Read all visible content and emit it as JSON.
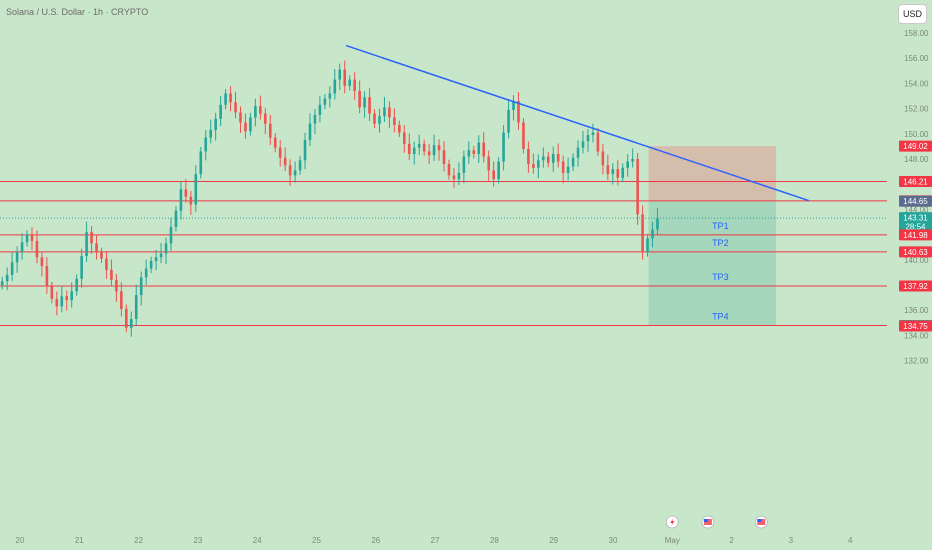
{
  "header": {
    "title": "Solana / U.S. Dollar · 1h · CRYPTO",
    "currency_button": "USD"
  },
  "colors": {
    "background": "#c8e6c9",
    "bull": "#26a69a",
    "bear": "#ef5350",
    "level_line": "#f23645",
    "trendline": "#2962ff",
    "risk_zone": "#d7b5a6",
    "reward_zone": "#9ed4b8",
    "axis_text": "#7a8a7a"
  },
  "chart_data": {
    "type": "candlestick",
    "title": "Solana / U.S. Dollar · 1h · CRYPTO",
    "xlabel": "",
    "ylabel": "",
    "ylim": [
      131.5,
      159.0
    ],
    "y_ticks": [
      "158.00",
      "156.00",
      "154.00",
      "152.00",
      "150.00",
      "148.00",
      "146.00",
      "144.00",
      "142.00",
      "140.00",
      "138.00",
      "136.00",
      "134.00",
      "132.00"
    ],
    "x_ticks": [
      "20",
      "21",
      "22",
      "23",
      "24",
      "25",
      "26",
      "27",
      "28",
      "29",
      "30",
      "May",
      "2",
      "3",
      "4"
    ],
    "x_tick_days": [
      0,
      1,
      2,
      3,
      4,
      5,
      6,
      7,
      8,
      9,
      10,
      11,
      12,
      13,
      14
    ],
    "grid": false,
    "closes": [
      138.3,
      138.8,
      139.8,
      140.6,
      141.4,
      142.0,
      141.5,
      140.2,
      139.5,
      137.9,
      136.9,
      136.3,
      137.1,
      136.8,
      137.5,
      138.5,
      140.3,
      142.2,
      141.3,
      140.6,
      140.1,
      139.2,
      138.4,
      137.5,
      136.1,
      134.6,
      135.3,
      137.2,
      138.6,
      139.3,
      139.9,
      140.2,
      140.5,
      141.3,
      142.6,
      143.9,
      145.6,
      145.0,
      144.4,
      146.8,
      148.6,
      149.7,
      150.3,
      151.2,
      152.3,
      153.2,
      152.5,
      151.7,
      150.9,
      150.2,
      151.3,
      152.2,
      151.6,
      150.8,
      149.7,
      148.9,
      148.1,
      147.5,
      146.7,
      147.1,
      147.9,
      149.5,
      150.8,
      151.5,
      152.3,
      152.8,
      153.2,
      154.3,
      155.1,
      153.8,
      154.3,
      153.4,
      152.1,
      152.9,
      151.6,
      150.8,
      151.4,
      152.1,
      151.3,
      150.7,
      150.1,
      149.2,
      148.4,
      148.9,
      149.2,
      148.6,
      148.3,
      149.1,
      148.7,
      147.6,
      146.7,
      146.4,
      146.9,
      148.2,
      148.7,
      148.4,
      149.3,
      148.2,
      147.1,
      146.4,
      147.8,
      150.1,
      151.9,
      152.6,
      150.9,
      148.8,
      147.6,
      147.3,
      147.9,
      148.2,
      147.7,
      148.4,
      147.8,
      146.9,
      147.4,
      148.1,
      148.9,
      149.4,
      149.9,
      150.1,
      148.6,
      147.5,
      146.8,
      147.2,
      146.5,
      147.3,
      147.8,
      148.0,
      143.6,
      140.6,
      141.7,
      142.4,
      143.3
    ],
    "levels": [
      {
        "price": 146.21,
        "label": "146.21"
      },
      {
        "price": 144.68,
        "label": "144.68"
      },
      {
        "price": 141.98,
        "label": "141.98"
      },
      {
        "price": 140.63,
        "label": "140.63"
      },
      {
        "price": 137.92,
        "label": "137.92"
      },
      {
        "price": 134.79,
        "label": "134.79"
      }
    ],
    "price_labels": [
      {
        "price": 149.02,
        "label": "149.02",
        "color": "#f23645"
      },
      {
        "price": 146.21,
        "label": "146.21",
        "color": "#f23645"
      },
      {
        "price": 144.68,
        "label": "144.68",
        "color": "#f23645"
      },
      {
        "price": 144.65,
        "label": "144.65",
        "color": "#5b6c8f"
      },
      {
        "price": 143.31,
        "label": "143.31",
        "sub": "28:54",
        "color": "#26a69a"
      },
      {
        "price": 141.98,
        "label": "141.98",
        "color": "#f23645"
      },
      {
        "price": 140.63,
        "label": "140.63",
        "color": "#f23645"
      },
      {
        "price": 137.92,
        "label": "137.92",
        "color": "#f23645"
      },
      {
        "price": 134.79,
        "label": "134.79",
        "color": "#26a69a"
      },
      {
        "price": 134.75,
        "label": "134.75",
        "color": "#f23645"
      }
    ],
    "trendline": {
      "from": {
        "day": 5.5,
        "price": 157.0
      },
      "to": {
        "day": 13.3,
        "price": 144.7
      }
    },
    "position": {
      "entry": 144.65,
      "stop": 149.02,
      "target": 134.79,
      "from_day": 10.6,
      "to_day": 12.75
    },
    "targets": [
      {
        "label": "TP1",
        "price": 141.98
      },
      {
        "label": "TP2",
        "price": 140.63
      },
      {
        "label": "TP3",
        "price": 137.92
      },
      {
        "label": "TP4",
        "price": 134.79
      }
    ],
    "current_price": 143.31,
    "event_icons": [
      {
        "name": "lightning-event-icon",
        "day": 11.0
      },
      {
        "name": "us-flag-icon",
        "day": 11.6
      },
      {
        "name": "us-flag-icon",
        "day": 12.5
      }
    ]
  }
}
